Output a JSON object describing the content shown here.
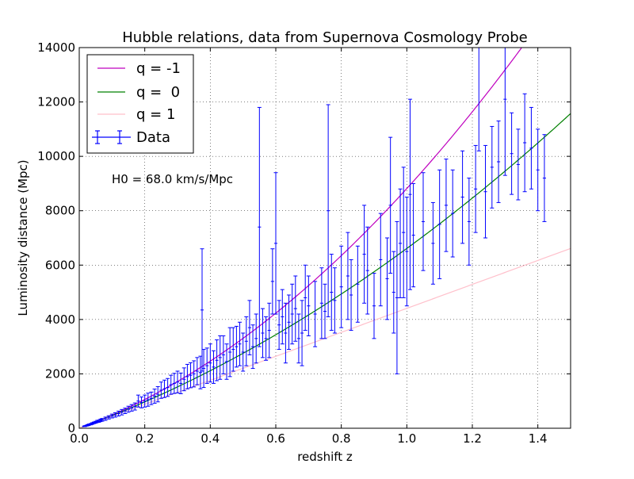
{
  "chart_data": {
    "type": "scatter",
    "title": "Hubble relations, data from Supernova Cosmology Probe",
    "xlabel": "redshift z",
    "ylabel": "Luminosity distance (Mpc)",
    "xlim": [
      0,
      1.5
    ],
    "ylim": [
      0,
      14000
    ],
    "xticks": [
      0.0,
      0.2,
      0.4,
      0.6,
      0.8,
      1.0,
      1.2,
      1.4
    ],
    "xtick_labels": [
      "0.0",
      "0.2",
      "0.4",
      "0.6",
      "0.8",
      "1.0",
      "1.2",
      "1.4"
    ],
    "yticks": [
      0,
      2000,
      4000,
      6000,
      8000,
      10000,
      12000,
      14000
    ],
    "ytick_labels": [
      "0",
      "2000",
      "4000",
      "6000",
      "8000",
      "10000",
      "12000",
      "14000"
    ],
    "grid": true,
    "legend_position": "top-left",
    "annotation": "H0 = 68.0 km/s/Mpc",
    "H0": 68.0,
    "curves": [
      {
        "name": "q = -1",
        "q": -1,
        "color": "#bf00bf"
      },
      {
        "name": "q =  0",
        "q": 0,
        "color": "#008000"
      },
      {
        "name": "q = 1",
        "q": 1,
        "color": "#ffc0cb"
      }
    ],
    "data_series": {
      "name": "Data",
      "color": "#0000ff",
      "points": [
        [
          0.015,
          70,
          12
        ],
        [
          0.018,
          80,
          15
        ],
        [
          0.022,
          95,
          15
        ],
        [
          0.025,
          110,
          18
        ],
        [
          0.028,
          120,
          20
        ],
        [
          0.03,
          135,
          20
        ],
        [
          0.035,
          150,
          25
        ],
        [
          0.04,
          175,
          30
        ],
        [
          0.045,
          200,
          30
        ],
        [
          0.05,
          220,
          35
        ],
        [
          0.055,
          250,
          40
        ],
        [
          0.06,
          260,
          40
        ],
        [
          0.065,
          290,
          45
        ],
        [
          0.07,
          310,
          50
        ],
        [
          0.08,
          350,
          60
        ],
        [
          0.09,
          400,
          60
        ],
        [
          0.1,
          450,
          70
        ],
        [
          0.11,
          490,
          80
        ],
        [
          0.12,
          540,
          90
        ],
        [
          0.13,
          590,
          100
        ],
        [
          0.14,
          640,
          100
        ],
        [
          0.15,
          700,
          110
        ],
        [
          0.16,
          750,
          120
        ],
        [
          0.17,
          800,
          130
        ],
        [
          0.18,
          1000,
          220
        ],
        [
          0.19,
          950,
          200
        ],
        [
          0.2,
          1000,
          220
        ],
        [
          0.21,
          1050,
          240
        ],
        [
          0.22,
          1100,
          230
        ],
        [
          0.23,
          1180,
          260
        ],
        [
          0.24,
          1250,
          280
        ],
        [
          0.25,
          1400,
          300
        ],
        [
          0.26,
          1450,
          320
        ],
        [
          0.27,
          1500,
          330
        ],
        [
          0.28,
          1600,
          350
        ],
        [
          0.29,
          1650,
          370
        ],
        [
          0.3,
          1700,
          400
        ],
        [
          0.31,
          1650,
          380
        ],
        [
          0.32,
          1800,
          420
        ],
        [
          0.33,
          1900,
          450
        ],
        [
          0.34,
          1950,
          460
        ],
        [
          0.35,
          2000,
          480
        ],
        [
          0.36,
          2100,
          500
        ],
        [
          0.37,
          2050,
          600
        ],
        [
          0.375,
          4350,
          2250
        ],
        [
          0.38,
          2200,
          700
        ],
        [
          0.39,
          2300,
          650
        ],
        [
          0.4,
          2400,
          700
        ],
        [
          0.41,
          2250,
          600
        ],
        [
          0.42,
          2500,
          750
        ],
        [
          0.43,
          2600,
          800
        ],
        [
          0.44,
          2700,
          700
        ],
        [
          0.45,
          2450,
          650
        ],
        [
          0.46,
          2800,
          900
        ],
        [
          0.47,
          2900,
          800
        ],
        [
          0.48,
          3000,
          750
        ],
        [
          0.49,
          3100,
          800
        ],
        [
          0.5,
          2800,
          700
        ],
        [
          0.51,
          3200,
          900
        ],
        [
          0.52,
          3700,
          1000
        ],
        [
          0.53,
          3000,
          800
        ],
        [
          0.54,
          3300,
          900
        ],
        [
          0.55,
          7400,
          4400
        ],
        [
          0.56,
          3500,
          900
        ],
        [
          0.57,
          3300,
          800
        ],
        [
          0.58,
          3600,
          1000
        ],
        [
          0.59,
          5400,
          1200
        ],
        [
          0.6,
          6800,
          2600
        ],
        [
          0.61,
          3800,
          900
        ],
        [
          0.62,
          4100,
          1000
        ],
        [
          0.63,
          3500,
          1100
        ],
        [
          0.64,
          3900,
          1000
        ],
        [
          0.65,
          4200,
          1100
        ],
        [
          0.66,
          4400,
          1200
        ],
        [
          0.67,
          3300,
          900
        ],
        [
          0.68,
          3500,
          1200
        ],
        [
          0.69,
          4800,
          1200
        ],
        [
          0.7,
          4500,
          1100
        ],
        [
          0.72,
          4200,
          1200
        ],
        [
          0.74,
          4600,
          1300
        ],
        [
          0.75,
          4300,
          1000
        ],
        [
          0.76,
          8000,
          3900
        ],
        [
          0.77,
          5000,
          1400
        ],
        [
          0.78,
          4700,
          1200
        ],
        [
          0.8,
          5200,
          1500
        ],
        [
          0.82,
          5600,
          1600
        ],
        [
          0.83,
          4900,
          1300
        ],
        [
          0.85,
          5300,
          1400
        ],
        [
          0.87,
          6400,
          1800
        ],
        [
          0.88,
          5800,
          1600
        ],
        [
          0.9,
          4500,
          1200
        ],
        [
          0.92,
          6200,
          1700
        ],
        [
          0.94,
          5500,
          1500
        ],
        [
          0.95,
          8200,
          2500
        ],
        [
          0.96,
          5000,
          1500
        ],
        [
          0.97,
          4800,
          2800
        ],
        [
          0.98,
          6800,
          2000
        ],
        [
          0.99,
          7200,
          2400
        ],
        [
          1.0,
          6500,
          2000
        ],
        [
          1.01,
          8600,
          3500
        ],
        [
          1.02,
          7100,
          1900
        ],
        [
          1.05,
          7600,
          1800
        ],
        [
          1.08,
          6800,
          1500
        ],
        [
          1.1,
          7500,
          2000
        ],
        [
          1.12,
          8200,
          1700
        ],
        [
          1.14,
          7900,
          1600
        ],
        [
          1.17,
          8500,
          1700
        ],
        [
          1.19,
          7600,
          1600
        ],
        [
          1.21,
          8800,
          1600
        ],
        [
          1.22,
          14000,
          3800
        ],
        [
          1.24,
          8700,
          1700
        ],
        [
          1.26,
          9600,
          1500
        ],
        [
          1.28,
          9800,
          1500
        ],
        [
          1.3,
          12100,
          2800
        ],
        [
          1.32,
          10100,
          1500
        ],
        [
          1.34,
          9700,
          1300
        ],
        [
          1.36,
          10500,
          1800
        ],
        [
          1.38,
          10300,
          1500
        ],
        [
          1.4,
          9500,
          1500
        ],
        [
          1.42,
          9200,
          1600
        ]
      ]
    }
  }
}
